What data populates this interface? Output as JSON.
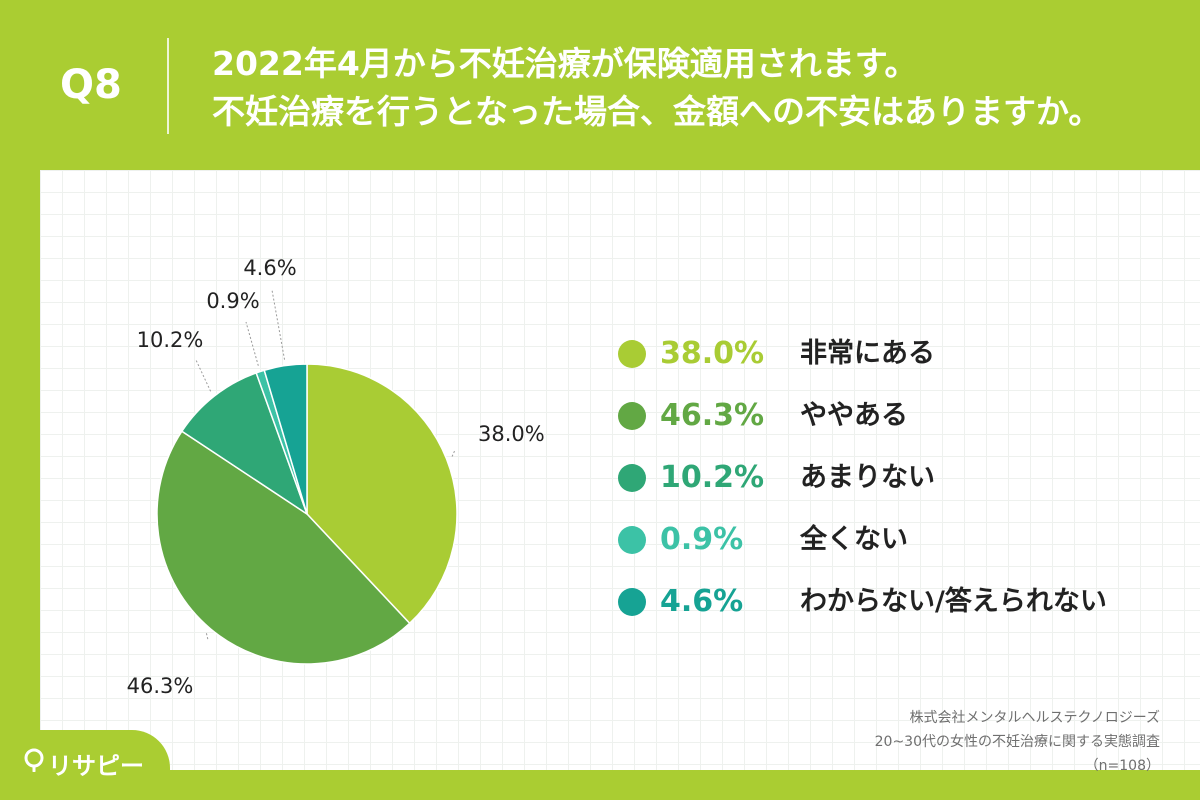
{
  "header": {
    "question_number": "Q8",
    "title_line1": "2022年4月から不妊治療が保険適用されます。",
    "title_line2": "不妊治療を行うとなった場合、金額への不安はありますか。"
  },
  "chart_data": {
    "type": "pie",
    "start_angle": "12 o'clock",
    "direction": "clockwise",
    "slices": [
      {
        "label": "非常にある",
        "value": 38.0,
        "display": "38.0%",
        "color": "#a9cc34"
      },
      {
        "label": "ややある",
        "value": 46.3,
        "display": "46.3%",
        "color": "#62a844"
      },
      {
        "label": "あまりない",
        "value": 10.2,
        "display": "10.2%",
        "color": "#2fa776"
      },
      {
        "label": "全くない",
        "value": 0.9,
        "display": "0.9%",
        "color": "#3cc2a6"
      },
      {
        "label": "わからない/答えられない",
        "value": 4.6,
        "display": "4.6%",
        "color": "#16a394"
      }
    ]
  },
  "source": {
    "line1": "株式会社メンタルヘルステクノロジーズ",
    "line2": "20~30代の女性の不妊治療に関する実態調査",
    "line3": "（n=108）"
  },
  "logo": {
    "text": "リサピー"
  }
}
